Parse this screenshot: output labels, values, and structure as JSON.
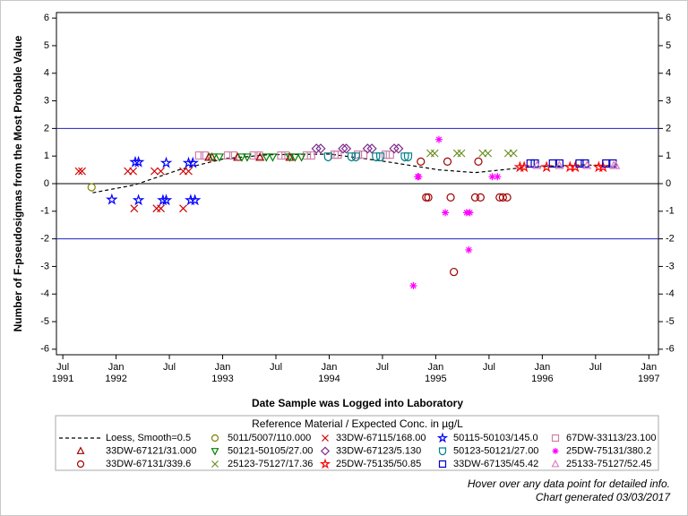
{
  "chart_data": {
    "type": "scatter",
    "x_label": "Date Sample was Logged into Laboratory",
    "y_label": "Number of F-pseudosigmas from the Most Probable Value",
    "legend_title": "Reference Material / Expected Conc. in µg/L",
    "footnotes": [
      "Hover over any data point for detailed info.",
      "Chart generated 03/03/2017"
    ],
    "xlim": [
      1991.44,
      1997.09
    ],
    "ylim": [
      -6.2,
      6.2
    ],
    "xticks": [
      {
        "value": 1991.5,
        "label": "Jul\n1991"
      },
      {
        "value": 1992.0,
        "label": "Jan\n1992"
      },
      {
        "value": 1992.5,
        "label": "Jul"
      },
      {
        "value": 1993.0,
        "label": "Jan\n1993"
      },
      {
        "value": 1993.5,
        "label": "Jul"
      },
      {
        "value": 1994.0,
        "label": "Jan\n1994"
      },
      {
        "value": 1994.5,
        "label": "Jul"
      },
      {
        "value": 1995.0,
        "label": "Jan\n1995"
      },
      {
        "value": 1995.5,
        "label": "Jul"
      },
      {
        "value": 1996.0,
        "label": "Jan\n1996"
      },
      {
        "value": 1996.5,
        "label": "Jul"
      },
      {
        "value": 1997.0,
        "label": "Jan\n1997"
      }
    ],
    "yticks": [
      -6,
      -5,
      -4,
      -3,
      -2,
      -1,
      0,
      1,
      2,
      3,
      4,
      5,
      6
    ],
    "reference_lines": [
      {
        "value": 0,
        "color": "#000000"
      },
      {
        "value": 2,
        "color": "#2020c0"
      },
      {
        "value": -2,
        "color": "#2020c0"
      }
    ],
    "series": [
      {
        "name": "Loess, Smooth=0.5",
        "marker": "dashed-line",
        "color": "#000000",
        "x": [
          1991.78,
          1992.17,
          1992.59,
          1993.01,
          1993.43,
          1994.01,
          1994.53,
          1995.03,
          1995.37,
          1995.87,
          1996.37,
          1996.71
        ],
        "values": [
          -0.33,
          -0.05,
          0.5,
          0.9,
          1.05,
          1.07,
          0.8,
          0.5,
          0.4,
          0.6,
          0.68,
          0.65
        ]
      },
      {
        "name": "5011/5007/110.000",
        "marker": "circle",
        "color": "#808000",
        "x": [
          1991.77
        ],
        "values": [
          -0.13
        ]
      },
      {
        "name": "33DW-67115/168.00",
        "marker": "x",
        "color": "#d00000",
        "x": [
          1991.65,
          1991.68,
          1992.11,
          1992.16,
          1992.36,
          1992.42,
          1992.63,
          1992.68,
          1992.17,
          1992.38,
          1992.42,
          1992.63
        ],
        "values": [
          0.45,
          0.45,
          0.45,
          0.45,
          0.45,
          0.45,
          0.45,
          0.45,
          -0.9,
          -0.9,
          -0.9,
          -0.9
        ]
      },
      {
        "name": "50115-50103/145.0",
        "marker": "star",
        "color": "#0000ff",
        "x": [
          1991.96,
          1992.18,
          1992.21,
          1992.47,
          1992.68,
          1992.72,
          1992.21,
          1992.44,
          1992.47,
          1992.7,
          1992.74
        ],
        "values": [
          -0.58,
          0.78,
          0.78,
          0.75,
          0.75,
          0.75,
          -0.6,
          -0.6,
          -0.6,
          -0.6,
          -0.6
        ]
      },
      {
        "name": "67DW-33113/23.100",
        "marker": "square",
        "color": "#d080a8",
        "x": [
          1992.78,
          1992.83,
          1993.05,
          1993.1,
          1993.29,
          1993.34,
          1993.55,
          1993.59,
          1993.79,
          1993.83,
          1994.05,
          1994.08,
          1994.27,
          1994.32,
          1994.53,
          1994.57
        ],
        "values": [
          1.02,
          1.02,
          1.02,
          1.02,
          1.02,
          1.02,
          1.02,
          1.02,
          1.02,
          1.02,
          1.05,
          1.05,
          1.05,
          1.05,
          1.05,
          1.05
        ]
      },
      {
        "name": "33DW-67121/31.000",
        "marker": "triangle",
        "color": "#a00000",
        "x": [
          1992.87,
          1992.9,
          1993.14,
          1993.35,
          1993.63
        ],
        "values": [
          0.95,
          0.95,
          0.95,
          0.95,
          0.95
        ]
      },
      {
        "name": "50121-50105/27.00",
        "marker": "triangle-down",
        "color": "#008000",
        "x": [
          1992.91,
          1992.97,
          1993.18,
          1993.23,
          1993.41,
          1993.47,
          1993.63,
          1993.68,
          1993.74
        ],
        "values": [
          0.97,
          0.97,
          0.97,
          0.97,
          0.97,
          0.97,
          0.97,
          0.97,
          0.97
        ]
      },
      {
        "name": "33DW-67123/5.130",
        "marker": "diamond",
        "color": "#7b2a8b",
        "x": [
          1993.88,
          1993.92,
          1994.13,
          1994.16,
          1994.36,
          1994.4,
          1994.61,
          1994.65
        ],
        "values": [
          1.27,
          1.27,
          1.27,
          1.27,
          1.27,
          1.27,
          1.27,
          1.27
        ]
      },
      {
        "name": "50123-50121/27.00",
        "marker": "shield",
        "color": "#00808c",
        "x": [
          1993.99,
          1994.21,
          1994.25,
          1994.44,
          1994.48,
          1994.71,
          1994.74
        ],
        "values": [
          0.98,
          0.98,
          0.98,
          0.98,
          0.98,
          0.98,
          0.98
        ]
      },
      {
        "name": "25DW-75131/380.2",
        "marker": "asterisk",
        "color": "#ff00ff",
        "x": [
          1994.79,
          1994.83,
          1994.84,
          1995.03,
          1995.09,
          1995.29,
          1995.32,
          1995.31,
          1995.53,
          1995.58
        ],
        "values": [
          -3.7,
          0.25,
          0.25,
          1.6,
          -1.05,
          -1.05,
          -1.05,
          -2.4,
          0.25,
          0.25
        ]
      },
      {
        "name": "33DW-67131/339.6",
        "marker": "circle",
        "color": "#a00000",
        "x": [
          1994.86,
          1994.91,
          1994.93,
          1995.11,
          1995.14,
          1995.17,
          1995.37,
          1995.4,
          1995.42,
          1995.6,
          1995.63,
          1995.67
        ],
        "values": [
          0.8,
          -0.5,
          -0.5,
          0.8,
          -0.5,
          -3.2,
          -0.5,
          0.8,
          -0.5,
          -0.5,
          -0.5,
          -0.5
        ]
      },
      {
        "name": "25123-75127/17.36",
        "marker": "x",
        "color": "#6b8e23",
        "x": [
          1994.95,
          1994.99,
          1995.2,
          1995.24,
          1995.44,
          1995.49,
          1995.68,
          1995.73
        ],
        "values": [
          1.1,
          1.1,
          1.1,
          1.1,
          1.1,
          1.1,
          1.1,
          1.1
        ]
      },
      {
        "name": "25DW-75135/50.85",
        "marker": "star",
        "color": "#ff0000",
        "x": [
          1995.79,
          1995.83,
          1996.04,
          1996.26,
          1996.31,
          1996.53,
          1996.57
        ],
        "values": [
          0.6,
          0.6,
          0.6,
          0.6,
          0.6,
          0.6,
          0.6
        ]
      },
      {
        "name": "33DW-67135/45.42",
        "marker": "square",
        "color": "#0000c0",
        "x": [
          1995.89,
          1995.93,
          1996.1,
          1996.16,
          1996.35,
          1996.4,
          1996.6,
          1996.66
        ],
        "values": [
          0.73,
          0.73,
          0.73,
          0.73,
          0.73,
          0.73,
          0.73,
          0.73
        ]
      },
      {
        "name": "25133-75127/52.45",
        "marker": "triangle",
        "color": "#e080c0",
        "x": [
          1995.95,
          1996.16,
          1996.42,
          1996.67,
          1996.69
        ],
        "values": [
          0.65,
          0.65,
          0.65,
          0.65,
          0.65
        ]
      }
    ]
  }
}
